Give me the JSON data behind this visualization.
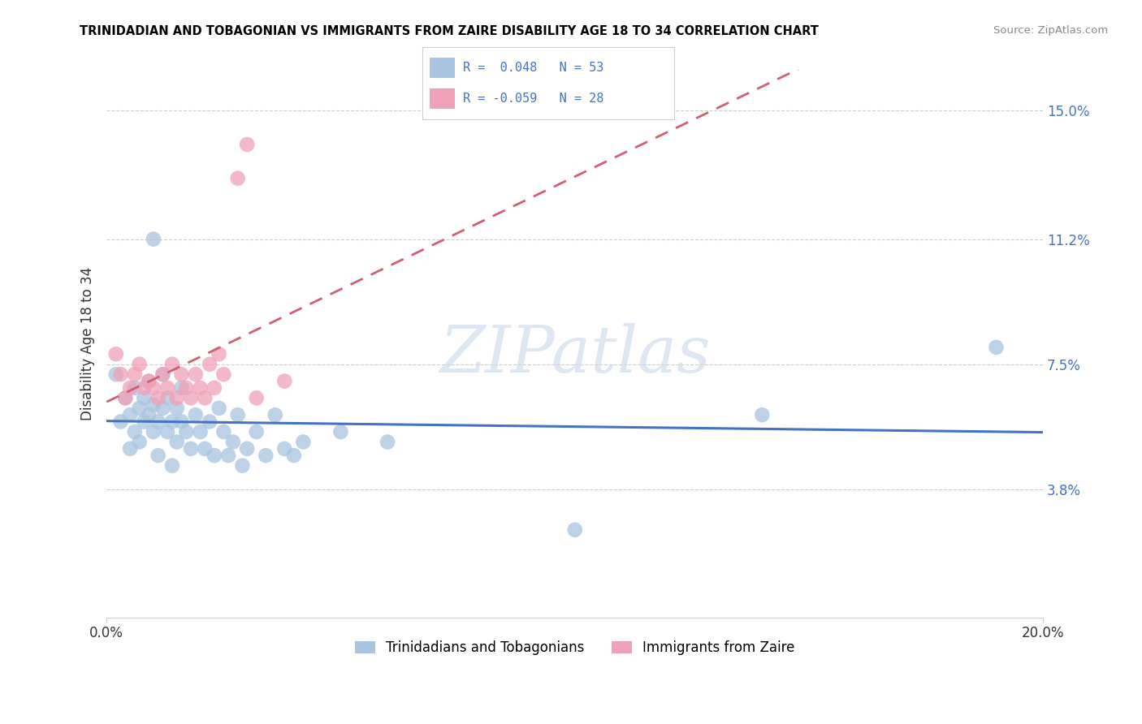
{
  "title": "TRINIDADIAN AND TOBAGONIAN VS IMMIGRANTS FROM ZAIRE DISABILITY AGE 18 TO 34 CORRELATION CHART",
  "source": "Source: ZipAtlas.com",
  "ylabel": "Disability Age 18 to 34",
  "xlim": [
    0.0,
    0.2
  ],
  "ylim": [
    0.0,
    0.162
  ],
  "xtick_positions": [
    0.0,
    0.2
  ],
  "xtick_labels": [
    "0.0%",
    "20.0%"
  ],
  "ytick_positions": [
    0.038,
    0.075,
    0.112,
    0.15
  ],
  "ytick_labels": [
    "3.8%",
    "7.5%",
    "11.2%",
    "15.0%"
  ],
  "r_blue": 0.048,
  "n_blue": 53,
  "r_pink": -0.059,
  "n_pink": 28,
  "legend_label_blue": "Trinidadians and Tobagonians",
  "legend_label_pink": "Immigrants from Zaire",
  "color_blue": "#a8c4e0",
  "color_pink": "#f0a0b8",
  "line_color_blue": "#4472c4",
  "line_color_pink": "#d06070",
  "text_color": "#4472c4",
  "watermark": "ZIPatlas",
  "background_color": "#ffffff",
  "grid_color": "#cccccc",
  "scatter_blue_x": [
    0.002,
    0.003,
    0.004,
    0.005,
    0.005,
    0.006,
    0.006,
    0.007,
    0.007,
    0.008,
    0.008,
    0.009,
    0.009,
    0.01,
    0.01,
    0.011,
    0.011,
    0.012,
    0.012,
    0.013,
    0.013,
    0.014,
    0.014,
    0.015,
    0.015,
    0.016,
    0.016,
    0.017,
    0.018,
    0.019,
    0.02,
    0.021,
    0.022,
    0.023,
    0.024,
    0.025,
    0.026,
    0.027,
    0.028,
    0.029,
    0.03,
    0.032,
    0.034,
    0.036,
    0.038,
    0.04,
    0.042,
    0.05,
    0.06,
    0.1,
    0.14,
    0.19,
    0.01
  ],
  "scatter_blue_y": [
    0.072,
    0.058,
    0.065,
    0.06,
    0.05,
    0.055,
    0.068,
    0.062,
    0.052,
    0.058,
    0.065,
    0.06,
    0.07,
    0.055,
    0.063,
    0.048,
    0.058,
    0.062,
    0.072,
    0.055,
    0.065,
    0.058,
    0.045,
    0.062,
    0.052,
    0.058,
    0.068,
    0.055,
    0.05,
    0.06,
    0.055,
    0.05,
    0.058,
    0.048,
    0.062,
    0.055,
    0.048,
    0.052,
    0.06,
    0.045,
    0.05,
    0.055,
    0.048,
    0.06,
    0.05,
    0.048,
    0.052,
    0.055,
    0.052,
    0.026,
    0.06,
    0.08,
    0.112
  ],
  "scatter_pink_x": [
    0.002,
    0.003,
    0.004,
    0.005,
    0.006,
    0.007,
    0.008,
    0.009,
    0.01,
    0.011,
    0.012,
    0.013,
    0.014,
    0.015,
    0.016,
    0.017,
    0.018,
    0.019,
    0.02,
    0.021,
    0.022,
    0.023,
    0.024,
    0.025,
    0.028,
    0.03,
    0.032,
    0.038
  ],
  "scatter_pink_y": [
    0.078,
    0.072,
    0.065,
    0.068,
    0.072,
    0.075,
    0.068,
    0.07,
    0.068,
    0.065,
    0.072,
    0.068,
    0.075,
    0.065,
    0.072,
    0.068,
    0.065,
    0.072,
    0.068,
    0.065,
    0.075,
    0.068,
    0.078,
    0.072,
    0.13,
    0.14,
    0.065,
    0.07
  ]
}
